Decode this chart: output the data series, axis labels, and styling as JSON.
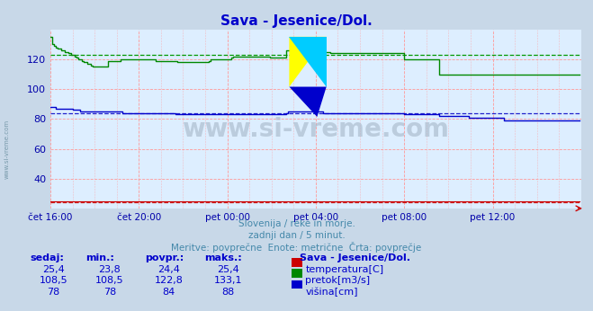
{
  "title": "Sava - Jesenice/Dol.",
  "plot_bg_color": "#ddeeff",
  "outer_bg_color": "#c8d8e8",
  "grid_color": "#ff9999",
  "xlabel": "",
  "ylabel": "",
  "xlim": [
    0,
    288
  ],
  "ylim": [
    20,
    140
  ],
  "yticks": [
    40,
    60,
    80,
    100,
    120
  ],
  "xtick_labels": [
    "čet 16:00",
    "čet 20:00",
    "pet 00:00",
    "pet 04:00",
    "pet 08:00",
    "pet 12:00"
  ],
  "xtick_positions": [
    0,
    48,
    96,
    144,
    192,
    240
  ],
  "title_color": "#0000cc",
  "tick_color": "#0000aa",
  "subtitle_lines": [
    "Slovenija / reke in morje.",
    "zadnji dan / 5 minut.",
    "Meritve: povprečne  Enote: metrične  Črta: povprečje"
  ],
  "subtitle_color": "#4488aa",
  "watermark": "www.si-vreme.com",
  "watermark_color": "#aabbcc",
  "temp_avg": 24.4,
  "temp_color": "#cc0000",
  "temp_dashed_color": "#cc2222",
  "flow_avg": 122.8,
  "flow_color": "#008800",
  "flow_dashed_color": "#009900",
  "height_avg": 84,
  "height_color": "#0000cc",
  "height_dashed_color": "#2222cc",
  "legend_title": "Sava - Jesenice/Dol.",
  "legend_title_color": "#0000cc",
  "legend_items": [
    {
      "label": "temperatura[C]",
      "color": "#cc0000",
      "sedaj": "25,4",
      "min": "23,8",
      "povpr": "24,4",
      "maks": "25,4"
    },
    {
      "label": "pretok[m3/s]",
      "color": "#008800",
      "sedaj": "108,5",
      "min": "108,5",
      "povpr": "122,8",
      "maks": "133,1"
    },
    {
      "label": "višina[cm]",
      "color": "#0000cc",
      "sedaj": "78",
      "min": "78",
      "povpr": "84",
      "maks": "88"
    }
  ],
  "table_headers": [
    "sedaj:",
    "min.:",
    "povpr.:",
    "maks.:"
  ],
  "temp_data": [
    25,
    25,
    25,
    25,
    25,
    25,
    25,
    25,
    25,
    25,
    25,
    25,
    25,
    25,
    25,
    25,
    25,
    25,
    25,
    25,
    25,
    25,
    25,
    25,
    25,
    25,
    25,
    25,
    25,
    25,
    25,
    25,
    25,
    25,
    25,
    25,
    25,
    25,
    25,
    25,
    25,
    25,
    25,
    25,
    25,
    25,
    25,
    25,
    25,
    25,
    25,
    25,
    25,
    25,
    25,
    25,
    25,
    25,
    25,
    25,
    25,
    25,
    25,
    25,
    25,
    25,
    25,
    25,
    25,
    25,
    25,
    25,
    25,
    25,
    25,
    25,
    25,
    25,
    25,
    25,
    25,
    25,
    25,
    25,
    25,
    25,
    25,
    25,
    25,
    25,
    25,
    25,
    25,
    25,
    25,
    25,
    25,
    25,
    25,
    25,
    25,
    25,
    25,
    25,
    25,
    25,
    25,
    25,
    25,
    25,
    25,
    25,
    25,
    25,
    25,
    25,
    25,
    25,
    25,
    25,
    25,
    25,
    25,
    25,
    25,
    25,
    25,
    25,
    25,
    25,
    25,
    25,
    25,
    25,
    25,
    25,
    25,
    25,
    25,
    25,
    25,
    25,
    25,
    25,
    25,
    25,
    25,
    25,
    25,
    25,
    25,
    25,
    25,
    25,
    25,
    25,
    25,
    25,
    25,
    25,
    25,
    25,
    25,
    25,
    25,
    25,
    25,
    25,
    25,
    25,
    25,
    25,
    25,
    25,
    25,
    25,
    25,
    25,
    25,
    25,
    25,
    25,
    25,
    25,
    25,
    25,
    25,
    25,
    25,
    25,
    25,
    25,
    25,
    25,
    25,
    25,
    25,
    25,
    25,
    25,
    25,
    25,
    25,
    25,
    25,
    25,
    25,
    25,
    25,
    25,
    25,
    25,
    25,
    25,
    25,
    25,
    25,
    25,
    25,
    25,
    25,
    25,
    25,
    25,
    25,
    25,
    25,
    25,
    25,
    25,
    25,
    25,
    25,
    25,
    25,
    25,
    25,
    25,
    25,
    25,
    25,
    25,
    25,
    25,
    25,
    25,
    25,
    25,
    25,
    25,
    25,
    25,
    25,
    25,
    25,
    25,
    25,
    25,
    25,
    25,
    25,
    25,
    25,
    25,
    25,
    25,
    25,
    25,
    25,
    25,
    25,
    25,
    25,
    25,
    25,
    25,
    25,
    25,
    25,
    25,
    25,
    25,
    25,
    25,
    25,
    25,
    25,
    25
  ],
  "flow_data": [
    135,
    130,
    129,
    128,
    127,
    127,
    126,
    126,
    125,
    125,
    124,
    123,
    123,
    122,
    121,
    120,
    120,
    119,
    118,
    118,
    117,
    117,
    116,
    115,
    115,
    115,
    115,
    115,
    115,
    115,
    115,
    119,
    119,
    119,
    119,
    119,
    119,
    119,
    120,
    120,
    120,
    120,
    120,
    120,
    120,
    120,
    120,
    120,
    120,
    120,
    120,
    120,
    120,
    120,
    120,
    120,
    120,
    119,
    119,
    119,
    119,
    119,
    119,
    119,
    119,
    119,
    119,
    119,
    119,
    118,
    118,
    118,
    118,
    118,
    118,
    118,
    118,
    118,
    118,
    118,
    118,
    118,
    118,
    118,
    118,
    118,
    119,
    120,
    120,
    120,
    120,
    120,
    120,
    120,
    120,
    120,
    120,
    120,
    121,
    122,
    122,
    122,
    122,
    122,
    122,
    122,
    122,
    122,
    122,
    122,
    122,
    122,
    122,
    122,
    122,
    122,
    122,
    122,
    122,
    121,
    121,
    121,
    121,
    121,
    121,
    121,
    121,
    121,
    126,
    126,
    126,
    126,
    126,
    126,
    126,
    126,
    125,
    125,
    125,
    125,
    125,
    125,
    125,
    125,
    125,
    125,
    125,
    125,
    125,
    125,
    125,
    125,
    124,
    124,
    124,
    124,
    124,
    124,
    124,
    124,
    124,
    124,
    124,
    124,
    124,
    124,
    124,
    124,
    124,
    124,
    124,
    124,
    124,
    124,
    124,
    124,
    124,
    124,
    124,
    124,
    124,
    124,
    124,
    124,
    124,
    124,
    124,
    124,
    124,
    124,
    124,
    124,
    120,
    120,
    120,
    120,
    120,
    120,
    120,
    120,
    120,
    120,
    120,
    120,
    120,
    120,
    120,
    120,
    120,
    120,
    120,
    110,
    110,
    110,
    110,
    110,
    110,
    110,
    110,
    110,
    110,
    110,
    110,
    110,
    110,
    110,
    110,
    110,
    110,
    110,
    110,
    110,
    110,
    110,
    110,
    110,
    110,
    110,
    110,
    110,
    110,
    110,
    110,
    110,
    110,
    110,
    110,
    110,
    110,
    110,
    110,
    110,
    110,
    110,
    110,
    110,
    110,
    110,
    110,
    110,
    110,
    110,
    110,
    110,
    110,
    110,
    110,
    110,
    110,
    110,
    110,
    110,
    110,
    110,
    110,
    110,
    110,
    110,
    110,
    110,
    110,
    110,
    110,
    110,
    110,
    110,
    110,
    110
  ],
  "height_data": [
    88,
    88,
    88,
    87,
    87,
    87,
    87,
    87,
    87,
    87,
    87,
    87,
    86,
    86,
    86,
    86,
    85,
    85,
    85,
    85,
    85,
    85,
    85,
    85,
    85,
    85,
    85,
    85,
    85,
    85,
    85,
    85,
    85,
    85,
    85,
    85,
    85,
    85,
    85,
    84,
    84,
    84,
    84,
    84,
    84,
    84,
    84,
    84,
    84,
    84,
    84,
    84,
    84,
    84,
    84,
    84,
    84,
    84,
    84,
    84,
    84,
    84,
    84,
    84,
    84,
    84,
    84,
    84,
    83,
    83,
    83,
    83,
    83,
    83,
    83,
    83,
    83,
    83,
    83,
    83,
    83,
    83,
    83,
    83,
    83,
    83,
    83,
    83,
    83,
    83,
    83,
    83,
    83,
    83,
    83,
    83,
    83,
    83,
    83,
    83,
    83,
    83,
    83,
    83,
    83,
    83,
    83,
    83,
    83,
    83,
    83,
    83,
    83,
    83,
    83,
    83,
    83,
    83,
    83,
    83,
    83,
    83,
    83,
    83,
    83,
    83,
    83,
    83,
    84,
    85,
    85,
    85,
    85,
    85,
    85,
    85,
    85,
    85,
    85,
    85,
    85,
    85,
    85,
    85,
    85,
    85,
    85,
    85,
    84,
    84,
    84,
    84,
    84,
    84,
    84,
    84,
    84,
    84,
    84,
    84,
    84,
    84,
    84,
    84,
    84,
    84,
    84,
    84,
    84,
    84,
    84,
    84,
    84,
    84,
    84,
    84,
    84,
    84,
    84,
    84,
    84,
    84,
    84,
    84,
    84,
    84,
    84,
    84,
    84,
    84,
    84,
    84,
    83,
    83,
    83,
    83,
    83,
    83,
    83,
    83,
    83,
    83,
    83,
    83,
    83,
    83,
    83,
    83,
    83,
    83,
    83,
    82,
    82,
    82,
    82,
    82,
    82,
    82,
    82,
    82,
    82,
    82,
    82,
    82,
    82,
    82,
    82,
    81,
    81,
    81,
    81,
    81,
    81,
    81,
    81,
    81,
    81,
    81,
    81,
    81,
    81,
    81,
    81,
    81,
    81,
    81,
    79,
    79,
    79,
    79,
    79,
    79,
    79,
    79,
    79,
    79,
    79,
    79,
    79,
    79,
    79,
    79,
    79,
    79,
    79,
    79,
    79,
    79,
    79,
    79,
    79,
    79,
    79,
    79,
    79,
    79,
    79,
    79,
    79,
    79,
    79,
    79,
    79,
    79,
    79,
    79,
    79,
    79
  ]
}
